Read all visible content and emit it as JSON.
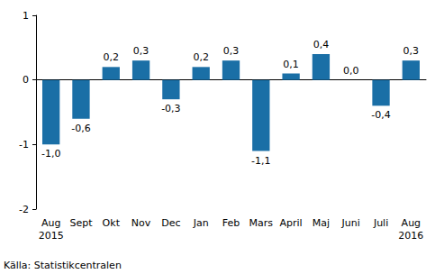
{
  "chart_data": {
    "type": "bar",
    "categories": [
      "Aug\n2015",
      "Sept",
      "Okt",
      "Nov",
      "Dec",
      "Jan",
      "Feb",
      "Mars",
      "April",
      "Maj",
      "Juni",
      "Juli",
      "Aug\n2016"
    ],
    "values": [
      -1.0,
      -0.6,
      0.2,
      0.3,
      -0.3,
      0.2,
      0.3,
      -1.1,
      0.1,
      0.4,
      0.0,
      -0.4,
      0.3
    ],
    "value_labels": [
      "-1,0",
      "-0,6",
      "0,2",
      "0,3",
      "-0,3",
      "0,2",
      "0,3",
      "-1,1",
      "0,1",
      "0,4",
      "0,0",
      "-0,4",
      "0,3"
    ],
    "color": "#1a6fa6",
    "ylim": [
      -2,
      1
    ],
    "yticks": [
      -2,
      -1,
      0,
      1
    ],
    "grid": false,
    "data_labels": true,
    "annotations": [
      "Källa: Statistikcentralen"
    ]
  }
}
